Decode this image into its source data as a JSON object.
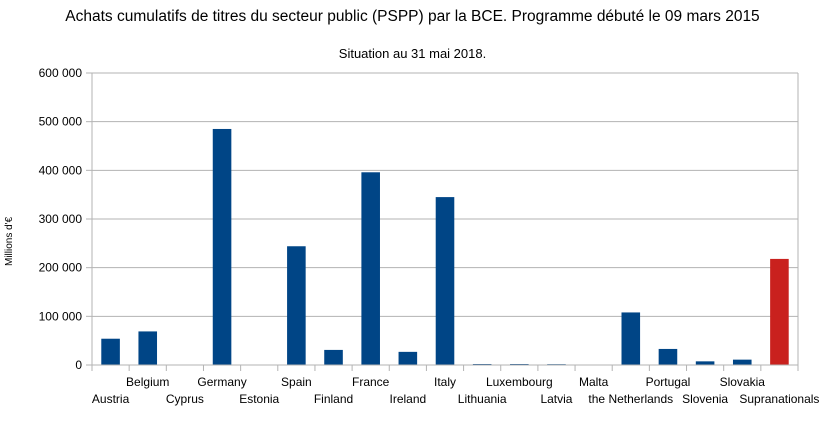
{
  "chart_data": {
    "type": "bar",
    "title": "Achats cumulatifs de titres du secteur public (PSPP) par la BCE. Programme débuté le 09 mars 2015",
    "subtitle": "Situation au 31 mai 2018.",
    "ylabel": "Millions d'€",
    "xlabel": "",
    "ylim": [
      0,
      600000
    ],
    "yticks": [
      "0",
      "100 000",
      "200 000",
      "300 000",
      "400 000",
      "500 000",
      "600 000"
    ],
    "ytick_values": [
      0,
      100000,
      200000,
      300000,
      400000,
      500000,
      600000
    ],
    "grid": true,
    "legend": "none",
    "categories": [
      "Austria",
      "Belgium",
      "Cyprus",
      "Germany",
      "Estonia",
      "Spain",
      "Finland",
      "France",
      "Ireland",
      "Italy",
      "Lithuania",
      "Luxembourg",
      "Latvia",
      "Malta",
      "the Netherlands",
      "Portugal",
      "Slovenia",
      "Slovakia",
      "Supranationals"
    ],
    "values": [
      54000,
      69000,
      300,
      485000,
      200,
      244000,
      31000,
      396000,
      27000,
      345000,
      2000,
      2000,
      1700,
      1000,
      108000,
      33000,
      7500,
      11000,
      218000
    ],
    "colors": [
      "#004586",
      "#004586",
      "#004586",
      "#004586",
      "#004586",
      "#004586",
      "#004586",
      "#004586",
      "#004586",
      "#004586",
      "#004586",
      "#004586",
      "#004586",
      "#004586",
      "#004586",
      "#004586",
      "#004586",
      "#004586",
      "#c9211e"
    ]
  }
}
